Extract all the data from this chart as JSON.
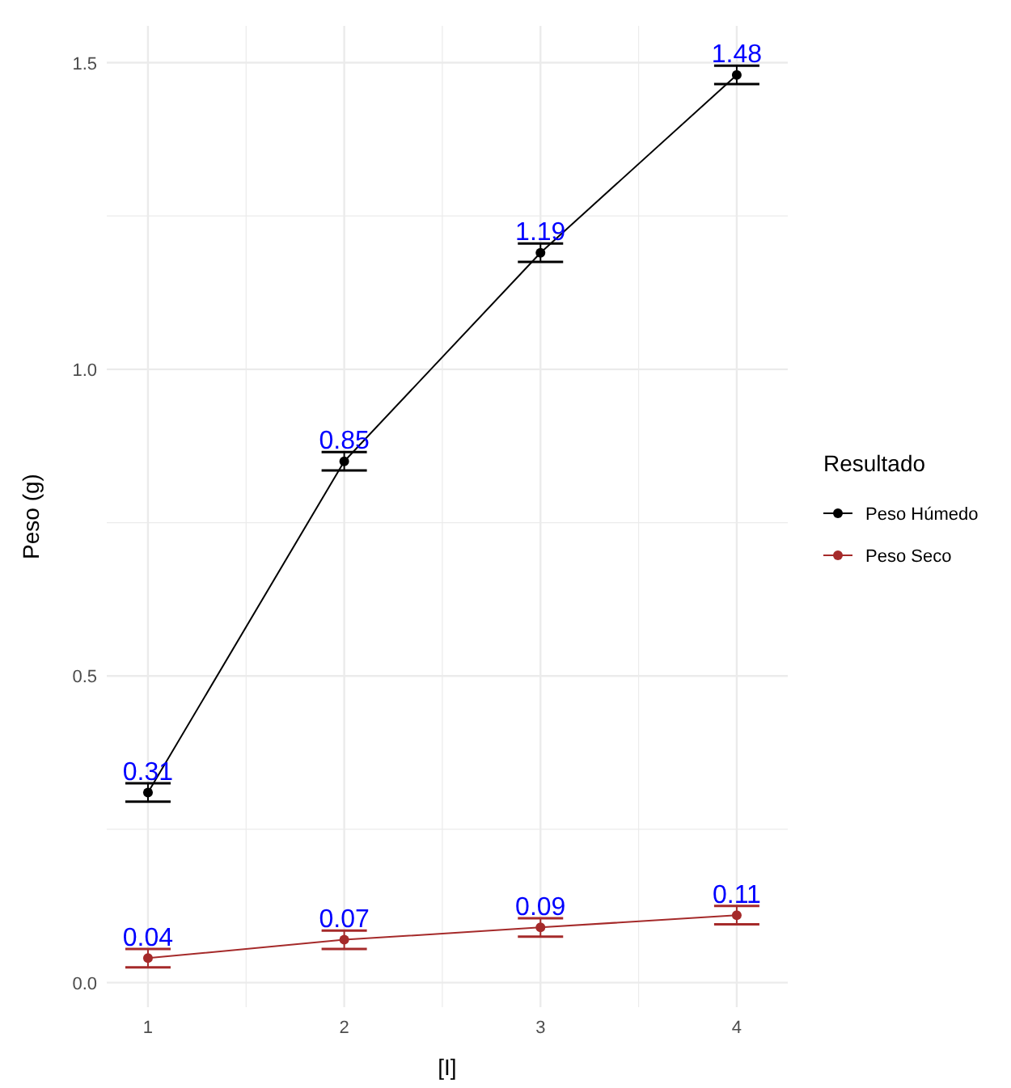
{
  "chart_data": {
    "type": "line",
    "xlabel": "[I]",
    "ylabel": "Peso (g)",
    "legend_title": "Resultado",
    "x": [
      1,
      2,
      3,
      4
    ],
    "series": [
      {
        "name": "Peso Húmedo",
        "color": "#000000",
        "values": [
          0.31,
          0.85,
          1.19,
          1.48
        ],
        "errors": [
          0.015,
          0.015,
          0.015,
          0.015
        ]
      },
      {
        "name": "Peso Seco",
        "color": "#a52a2a",
        "values": [
          0.04,
          0.07,
          0.09,
          0.11
        ],
        "errors": [
          0.015,
          0.015,
          0.015,
          0.015
        ]
      }
    ],
    "xlim": [
      0.79,
      4.26
    ],
    "ylim": [
      -0.04,
      1.56
    ],
    "xticks": [
      1,
      2,
      3,
      4
    ],
    "yticks": [
      {
        "value": 0,
        "label": "0.0"
      },
      0.5,
      {
        "value": 1,
        "label": "1.0"
      },
      1.5
    ],
    "grid": true,
    "legend": "right",
    "marker": "circle",
    "line_style": "solid",
    "data_labels": true
  }
}
